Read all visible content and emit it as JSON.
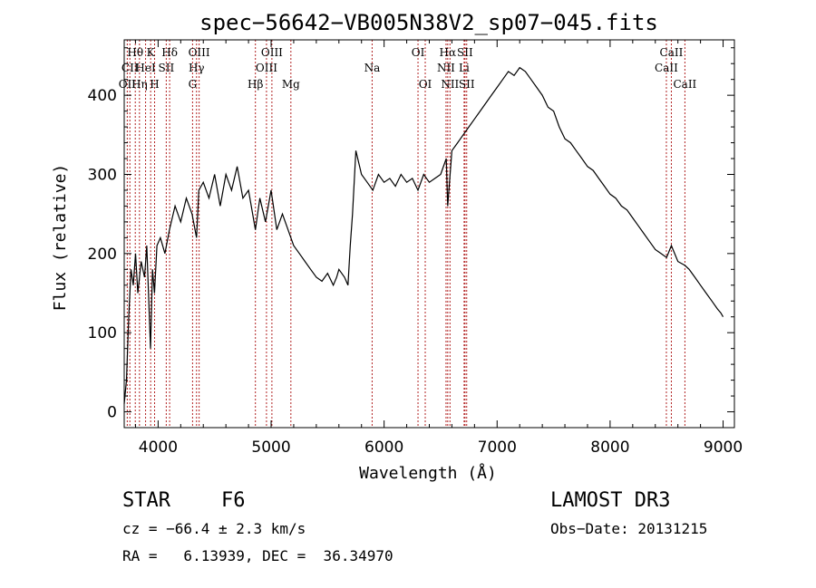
{
  "chart_data": {
    "type": "line",
    "title": "spec−56642−VB005N38V2_sp07−045.fits",
    "xlabel": "Wavelength (Å)",
    "ylabel": "Flux (relative)",
    "xlim": [
      3700,
      9100
    ],
    "ylim": [
      -20,
      470
    ],
    "xticks": [
      4000,
      5000,
      6000,
      7000,
      8000,
      9000
    ],
    "yticks": [
      0,
      100,
      200,
      300,
      400
    ],
    "series": [
      {
        "name": "flux",
        "x": [
          3700,
          3720,
          3740,
          3760,
          3780,
          3800,
          3820,
          3850,
          3880,
          3900,
          3920,
          3933,
          3950,
          3968,
          3990,
          4020,
          4060,
          4100,
          4150,
          4200,
          4250,
          4300,
          4340,
          4360,
          4400,
          4450,
          4500,
          4550,
          4600,
          4650,
          4700,
          4750,
          4800,
          4861,
          4900,
          4950,
          5000,
          5050,
          5100,
          5150,
          5200,
          5250,
          5300,
          5350,
          5400,
          5450,
          5500,
          5550,
          5580,
          5600,
          5650,
          5680,
          5700,
          5720,
          5750,
          5800,
          5850,
          5900,
          5950,
          6000,
          6050,
          6100,
          6150,
          6200,
          6250,
          6300,
          6350,
          6400,
          6450,
          6500,
          6550,
          6563,
          6600,
          6650,
          6700,
          6750,
          6800,
          6850,
          6900,
          6950,
          7000,
          7050,
          7100,
          7150,
          7200,
          7250,
          7300,
          7350,
          7400,
          7450,
          7500,
          7550,
          7600,
          7650,
          7700,
          7750,
          7800,
          7850,
          7900,
          7950,
          8000,
          8050,
          8100,
          8150,
          8200,
          8250,
          8300,
          8350,
          8400,
          8450,
          8500,
          8542,
          8600,
          8662,
          8700,
          8750,
          8800,
          8850,
          8900,
          8950,
          8980,
          9000
        ],
        "y": [
          10,
          40,
          120,
          180,
          160,
          200,
          150,
          190,
          170,
          210,
          130,
          80,
          180,
          150,
          210,
          220,
          200,
          230,
          260,
          240,
          270,
          250,
          220,
          280,
          290,
          270,
          300,
          260,
          300,
          280,
          310,
          270,
          280,
          230,
          270,
          240,
          280,
          230,
          250,
          230,
          210,
          200,
          190,
          180,
          170,
          165,
          175,
          160,
          170,
          180,
          170,
          160,
          210,
          250,
          330,
          300,
          290,
          280,
          300,
          290,
          295,
          285,
          300,
          290,
          295,
          280,
          300,
          290,
          295,
          300,
          320,
          260,
          330,
          340,
          350,
          360,
          370,
          380,
          390,
          400,
          410,
          420,
          430,
          425,
          435,
          430,
          420,
          410,
          400,
          385,
          380,
          360,
          345,
          340,
          330,
          320,
          310,
          305,
          295,
          285,
          275,
          270,
          260,
          255,
          245,
          235,
          225,
          215,
          205,
          200,
          195,
          210,
          190,
          185,
          180,
          170,
          160,
          150,
          140,
          130,
          125,
          120
        ]
      }
    ],
    "lines": [
      {
        "label": "Hθ",
        "x": 3798,
        "row": 0
      },
      {
        "label": "CII",
        "x": 3750,
        "row": 1
      },
      {
        "label": "OII",
        "x": 3727,
        "row": 2
      },
      {
        "label": "K",
        "x": 3934,
        "row": 0
      },
      {
        "label": "HeI",
        "x": 3889,
        "row": 1
      },
      {
        "label": "Hη",
        "x": 3835,
        "row": 2
      },
      {
        "label": "Hδ",
        "x": 4102,
        "row": 0
      },
      {
        "label": "SII",
        "x": 4072,
        "row": 1
      },
      {
        "label": "H",
        "x": 3969,
        "row": 2
      },
      {
        "label": "OIII",
        "x": 4363,
        "row": 0
      },
      {
        "label": "Hγ",
        "x": 4340,
        "row": 1
      },
      {
        "label": "G",
        "x": 4305,
        "row": 2
      },
      {
        "label": "OIII",
        "x": 5007,
        "row": 0
      },
      {
        "label": "OIII",
        "x": 4959,
        "row": 1
      },
      {
        "label": "Hβ",
        "x": 4861,
        "row": 2
      },
      {
        "label": "Mg",
        "x": 5175,
        "row": 2
      },
      {
        "label": "Na",
        "x": 5894,
        "row": 1
      },
      {
        "label": "OI",
        "x": 6300,
        "row": 0
      },
      {
        "label": "OI",
        "x": 6364,
        "row": 2
      },
      {
        "label": "Hα",
        "x": 6563,
        "row": 0
      },
      {
        "label": "NII",
        "x": 6548,
        "row": 1
      },
      {
        "label": "NII",
        "x": 6583,
        "row": 2
      },
      {
        "label": "SII",
        "x": 6716,
        "row": 0
      },
      {
        "label": "Li",
        "x": 6708,
        "row": 1
      },
      {
        "label": "SII",
        "x": 6731,
        "row": 2
      },
      {
        "label": "CaII",
        "x": 8542,
        "row": 0
      },
      {
        "label": "CaII",
        "x": 8498,
        "row": 1
      },
      {
        "label": "CaII",
        "x": 8662,
        "row": 2
      }
    ]
  },
  "info": {
    "object_class": "STAR",
    "subclass": "F6",
    "survey": "LAMOST DR3",
    "cz": "cz = −66.4 ± 2.3 km/s",
    "obs_date": "Obs−Date: 20131215",
    "coords": "RA =   6.13939, DEC =  36.34970"
  }
}
